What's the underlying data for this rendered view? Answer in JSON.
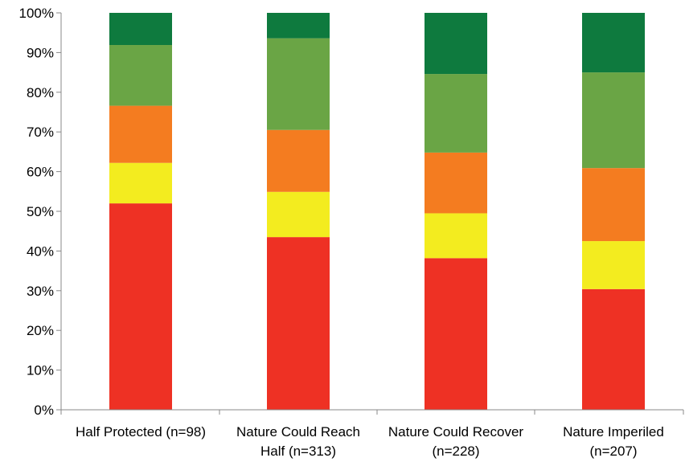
{
  "chart_data": {
    "type": "bar",
    "stacked": true,
    "categories": [
      [
        "Half Protected (n=98)"
      ],
      [
        "Nature Could Reach",
        "Half (n=313)"
      ],
      [
        "Nature Could Recover",
        "(n=228)"
      ],
      [
        "Nature Imperiled",
        "(n=207)"
      ]
    ],
    "series": [
      {
        "color": "#ee3124",
        "values": [
          52.0,
          43.5,
          38.2,
          30.4
        ]
      },
      {
        "color": "#f3ec1f",
        "values": [
          10.2,
          11.4,
          11.3,
          12.1
        ]
      },
      {
        "color": "#f47c20",
        "values": [
          14.4,
          15.6,
          15.3,
          18.4
        ]
      },
      {
        "color": "#6aa545",
        "values": [
          15.3,
          23.1,
          19.8,
          24.1
        ]
      },
      {
        "color": "#0e7a3e",
        "values": [
          8.1,
          6.4,
          15.4,
          15.0
        ]
      }
    ],
    "ylim": [
      0,
      100
    ],
    "yticks": [
      "0%",
      "10%",
      "20%",
      "30%",
      "40%",
      "50%",
      "60%",
      "70%",
      "80%",
      "90%",
      "100%"
    ],
    "grid": false,
    "legend": "none"
  }
}
